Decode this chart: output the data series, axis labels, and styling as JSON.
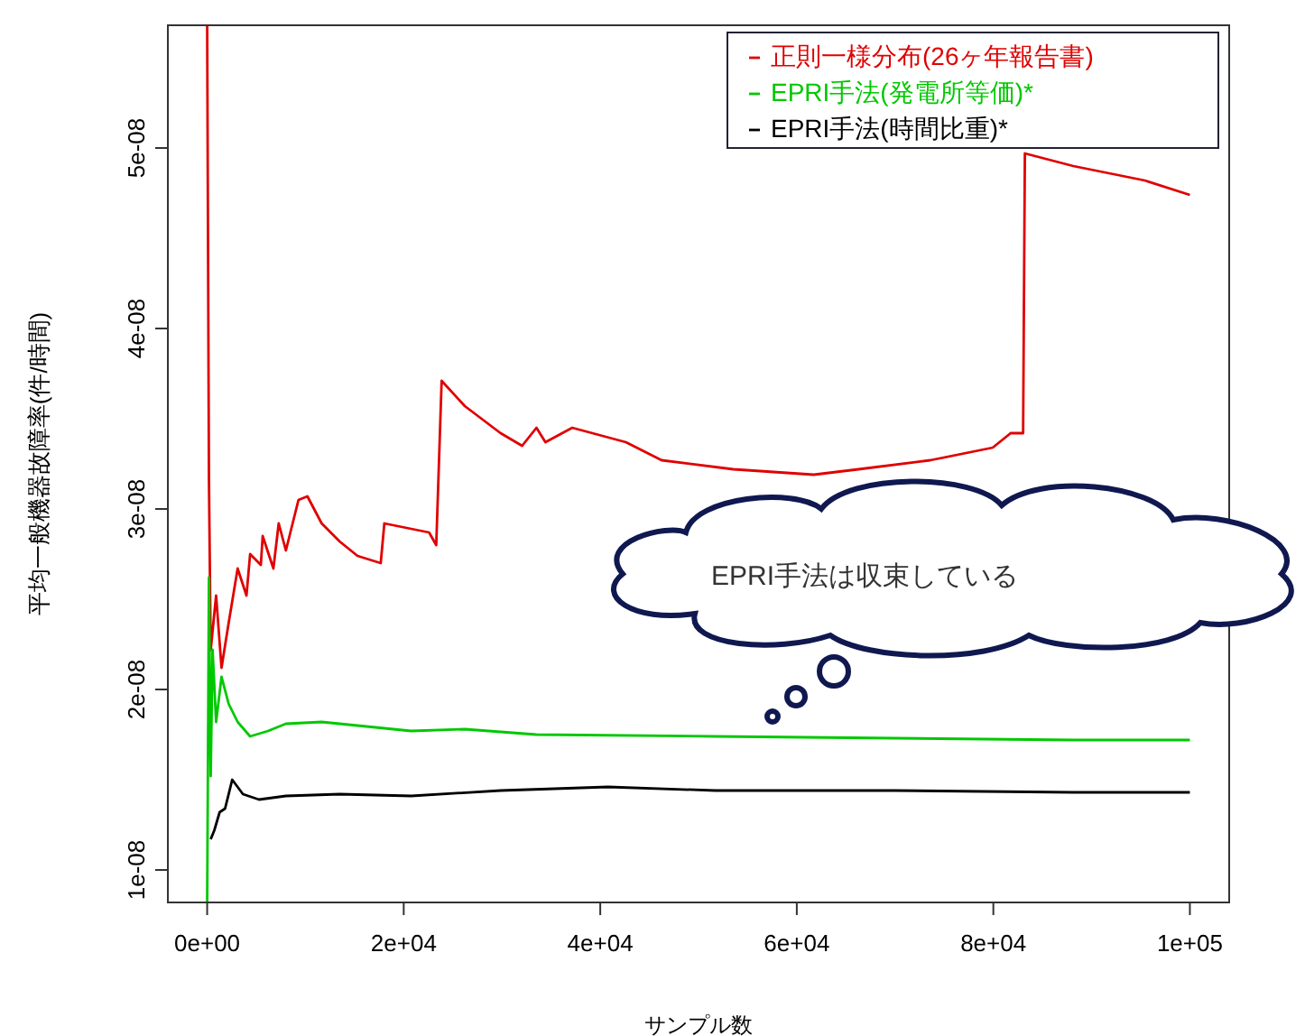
{
  "chart_data": {
    "type": "line",
    "xlabel": "サンプル数",
    "ylabel": "平均一般機器故障率(件/時間)",
    "xlim": [
      -4000,
      104000
    ],
    "ylim": [
      8.2e-09,
      5.68e-08
    ],
    "xticks": [
      {
        "value": 0,
        "label": "0e+00"
      },
      {
        "value": 20000,
        "label": "2e+04"
      },
      {
        "value": 40000,
        "label": "4e+04"
      },
      {
        "value": 60000,
        "label": "6e+04"
      },
      {
        "value": 80000,
        "label": "8e+04"
      },
      {
        "value": 100000,
        "label": "1e+05"
      }
    ],
    "yticks": [
      {
        "value": 1e-08,
        "label": "1e-08"
      },
      {
        "value": 2e-08,
        "label": "2e-08"
      },
      {
        "value": 3e-08,
        "label": "3e-08"
      },
      {
        "value": 4e-08,
        "label": "4e-08"
      },
      {
        "value": 5e-08,
        "label": "5e-08"
      }
    ],
    "legend": "top right",
    "grid": false,
    "annotations": [
      "EPRI手法は収束している"
    ],
    "series": [
      {
        "name": "正則一様分布(26ヶ年報告書)",
        "color": "#e00000",
        "x": [
          0,
          180,
          360,
          910,
          1460,
          2190,
          3100,
          4000,
          4370,
          5460,
          5650,
          6740,
          7280,
          8010,
          9290,
          10200,
          11650,
          13480,
          15300,
          17660,
          18030,
          22580,
          23310,
          23860,
          26220,
          29860,
          32050,
          33510,
          34420,
          37150,
          42610,
          46250,
          53540,
          61730,
          66280,
          73570,
          79940,
          81760,
          83030,
          83210,
          88140,
          91780,
          95420,
          100000
        ],
        "values": [
          5.68e-08,
          3.17e-08,
          2.22e-08,
          2.52e-08,
          2.12e-08,
          2.37e-08,
          2.67e-08,
          2.52e-08,
          2.75e-08,
          2.69e-08,
          2.85e-08,
          2.67e-08,
          2.92e-08,
          2.77e-08,
          3.05e-08,
          3.07e-08,
          2.92e-08,
          2.82e-08,
          2.74e-08,
          2.7e-08,
          2.92e-08,
          2.87e-08,
          2.8e-08,
          3.71e-08,
          3.57e-08,
          3.42e-08,
          3.35e-08,
          3.45e-08,
          3.37e-08,
          3.45e-08,
          3.37e-08,
          3.27e-08,
          3.22e-08,
          3.19e-08,
          3.22e-08,
          3.27e-08,
          3.34e-08,
          3.42e-08,
          3.42e-08,
          4.97e-08,
          4.9e-08,
          4.86e-08,
          4.82e-08,
          4.74e-08
        ]
      },
      {
        "name": "EPRI手法(発電所等価)*",
        "color": "#00c800",
        "x": [
          0,
          180,
          360,
          550,
          910,
          1460,
          2190,
          3100,
          4370,
          6190,
          8010,
          11650,
          15300,
          20760,
          26220,
          33510,
          51720,
          69930,
          88140,
          100000
        ],
        "values": [
          8.2e-09,
          2.62e-08,
          1.52e-08,
          2.22e-08,
          1.82e-08,
          2.07e-08,
          1.92e-08,
          1.82e-08,
          1.74e-08,
          1.77e-08,
          1.81e-08,
          1.82e-08,
          1.8e-08,
          1.77e-08,
          1.78e-08,
          1.75e-08,
          1.74e-08,
          1.73e-08,
          1.72e-08,
          1.72e-08
        ]
      },
      {
        "name": "EPRI手法(時間比重)*",
        "color": "#000000",
        "x": [
          360,
          730,
          1270,
          1820,
          2550,
          3640,
          5280,
          8010,
          13480,
          20760,
          29860,
          40790,
          51720,
          69930,
          88140,
          100000
        ],
        "values": [
          1.17e-08,
          1.22e-08,
          1.32e-08,
          1.34e-08,
          1.5e-08,
          1.42e-08,
          1.39e-08,
          1.41e-08,
          1.42e-08,
          1.41e-08,
          1.44e-08,
          1.46e-08,
          1.44e-08,
          1.44e-08,
          1.43e-08,
          1.43e-08
        ]
      }
    ]
  }
}
